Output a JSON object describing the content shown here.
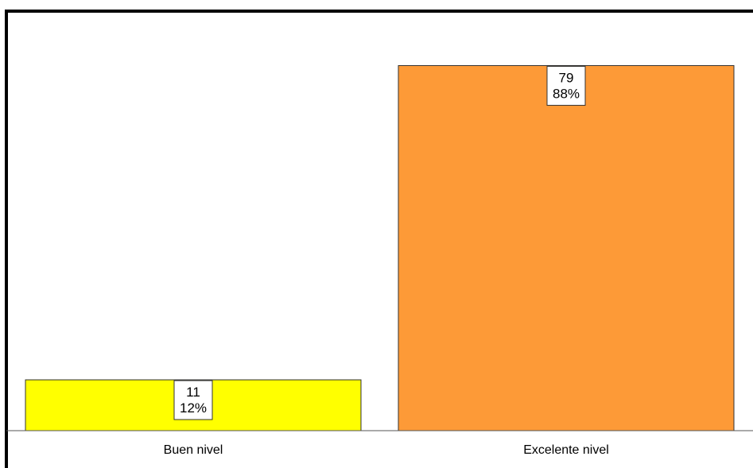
{
  "chart_data": {
    "type": "bar",
    "categories": [
      "Buen nivel",
      "Excelente nivel"
    ],
    "values": [
      11,
      79
    ],
    "percent_labels": [
      "12%",
      "88%"
    ],
    "colors": [
      "#ffff00",
      "#fd9a37"
    ],
    "ylim": [
      0,
      87
    ],
    "title": "",
    "xlabel": "",
    "ylabel": "",
    "grid": false,
    "legend": "none"
  }
}
